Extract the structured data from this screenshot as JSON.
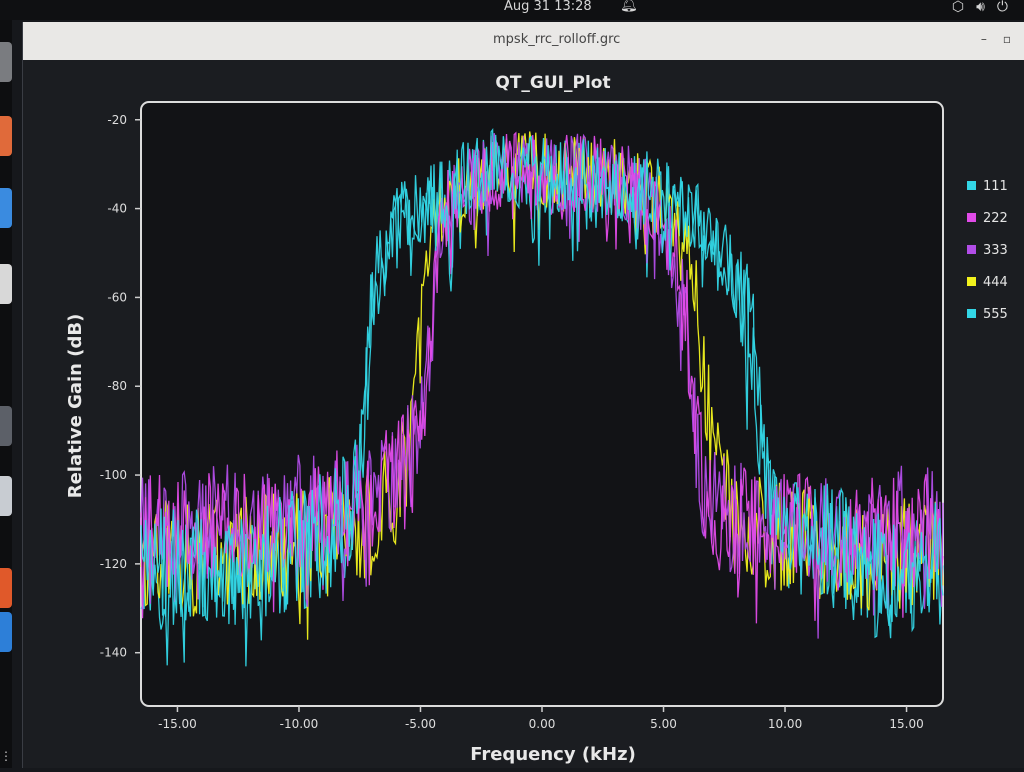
{
  "taskbar": {
    "date_time": "Aug 31  13:28"
  },
  "window": {
    "title": "mpsk_rrc_rolloff.grc",
    "controls": {
      "minimize": "–",
      "maximize": "▫"
    }
  },
  "legend": {
    "items": [
      {
        "label": "111",
        "color": "#33d6e6"
      },
      {
        "label": "222",
        "color": "#e14be8"
      },
      {
        "label": "333",
        "color": "#b24de8"
      },
      {
        "label": "444",
        "color": "#f2f21d"
      },
      {
        "label": "555",
        "color": "#33d6e6"
      }
    ]
  },
  "chart_data": {
    "type": "line",
    "title": "QT_GUI_Plot",
    "xlabel": "Frequency (kHz)",
    "ylabel": "Relative Gain (dB)",
    "xlim": [
      -16.5,
      16.5
    ],
    "ylim": [
      -152,
      -16
    ],
    "x_ticks": [
      -15.0,
      -10.0,
      -5.0,
      0.0,
      5.0,
      10.0,
      15.0
    ],
    "x_tick_labels": [
      "-15.00",
      "-10.00",
      "-5.00",
      "0.00",
      "5.00",
      "10.00",
      "15.00"
    ],
    "y_ticks": [
      -20,
      -40,
      -60,
      -80,
      -100,
      -120,
      -140
    ],
    "y_tick_labels": [
      "-20",
      "-40",
      "-60",
      "-80",
      "-100",
      "-120",
      "-140"
    ],
    "grid": false,
    "legend_position": "right",
    "series": [
      {
        "name": "111",
        "color": "#33d6e6",
        "x": [
          -16.5,
          -15,
          -13,
          -11,
          -9,
          -8,
          -7.6,
          -7.2,
          -7,
          -6,
          -5,
          -4,
          -3,
          -2,
          -1,
          0,
          1,
          2,
          3,
          4,
          5,
          6,
          6.8,
          7.4,
          8,
          8.6,
          8.9,
          9.2,
          10,
          11,
          12,
          13,
          14,
          15,
          16.5
        ],
        "y": [
          -118,
          -120,
          -120,
          -118,
          -112,
          -108,
          -100,
          -78,
          -58,
          -43,
          -40,
          -37,
          -33,
          -31,
          -31,
          -32,
          -32,
          -32,
          -33,
          -35,
          -38,
          -40,
          -45,
          -50,
          -56,
          -66,
          -80,
          -100,
          -110,
          -113,
          -115,
          -118,
          -120,
          -120,
          -119
        ]
      },
      {
        "name": "222",
        "color": "#e14be8",
        "x": [
          -16.5,
          -15,
          -13,
          -11,
          -9,
          -7,
          -6,
          -5.5,
          -5,
          -4.6,
          -4.3,
          -4,
          -3,
          -2,
          -1,
          0,
          1,
          2,
          3,
          4,
          5,
          5.5,
          6,
          6.3,
          6.6,
          7,
          8,
          10,
          12,
          14,
          16.5
        ],
        "y": [
          -112,
          -113,
          -112,
          -110,
          -108,
          -106,
          -100,
          -98,
          -92,
          -72,
          -50,
          -40,
          -35,
          -32,
          -31,
          -32,
          -32,
          -32,
          -33,
          -36,
          -42,
          -50,
          -68,
          -90,
          -100,
          -106,
          -110,
          -112,
          -114,
          -113,
          -112
        ]
      },
      {
        "name": "333",
        "color": "#b24de8",
        "x": [
          -16.5,
          -15,
          -13,
          -11,
          -9,
          -7,
          -6,
          -5.5,
          -5,
          -4.6,
          -4.3,
          -4,
          -3,
          -2,
          -1,
          0,
          1,
          2,
          3,
          4,
          5,
          5.5,
          6,
          6.3,
          6.6,
          7,
          8,
          10,
          12,
          14,
          16.5
        ],
        "y": [
          -110,
          -111,
          -110,
          -109,
          -107,
          -105,
          -100,
          -97,
          -90,
          -72,
          -52,
          -41,
          -35,
          -32,
          -31,
          -32,
          -32,
          -32,
          -33,
          -36,
          -43,
          -52,
          -70,
          -92,
          -100,
          -106,
          -110,
          -111,
          -112,
          -111,
          -110
        ]
      },
      {
        "name": "444",
        "color": "#f2f21d",
        "x": [
          -16.5,
          -15,
          -13,
          -11,
          -9,
          -7,
          -6,
          -5.6,
          -5.2,
          -4.8,
          -4.5,
          -4,
          -3,
          -2,
          -1,
          0,
          1,
          2,
          3,
          4,
          5,
          5.6,
          6.2,
          6.6,
          7,
          7.4,
          8,
          10,
          12,
          14,
          16.5
        ],
        "y": [
          -118,
          -119,
          -118,
          -116,
          -113,
          -110,
          -104,
          -96,
          -78,
          -55,
          -45,
          -40,
          -35,
          -32,
          -31,
          -32,
          -32,
          -32,
          -33,
          -36,
          -40,
          -46,
          -55,
          -75,
          -95,
          -104,
          -110,
          -114,
          -116,
          -118,
          -117
        ]
      },
      {
        "name": "555",
        "color": "#33d6e6",
        "x": [
          -16.5,
          -15,
          -13,
          -11,
          -9,
          -8,
          -7.6,
          -7.2,
          -7,
          -6,
          -5,
          -4,
          -3,
          -2,
          -1,
          0,
          1,
          2,
          3,
          4,
          5,
          6,
          6.8,
          7.4,
          8,
          8.6,
          8.9,
          9.2,
          10,
          11,
          12,
          13,
          14,
          15,
          16.5
        ],
        "y": [
          -121,
          -123,
          -123,
          -121,
          -115,
          -111,
          -103,
          -80,
          -60,
          -44,
          -41,
          -38,
          -34,
          -32,
          -32,
          -33,
          -33,
          -33,
          -34,
          -36,
          -39,
          -41,
          -46,
          -51,
          -57,
          -67,
          -82,
          -103,
          -113,
          -116,
          -118,
          -121,
          -123,
          -123,
          -122
        ]
      }
    ]
  }
}
